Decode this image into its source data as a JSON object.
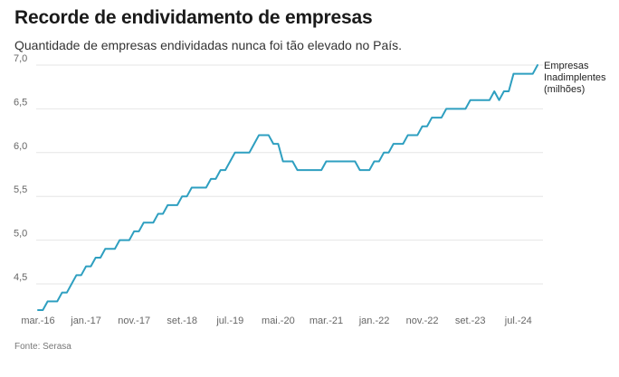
{
  "title": "Recorde de endividamento de empresas",
  "subtitle": "Quantidade de empresas endividadas nunca foi tão elevado no País.",
  "source": "Fonte: Serasa",
  "colors": {
    "line": "#2e9fc0",
    "grid": "#e6e6e6",
    "tick": "#666666"
  },
  "chart_data": {
    "type": "line",
    "ylim": [
      4.2,
      7.0
    ],
    "yticks": [
      "4,5",
      "5,0",
      "5,5",
      "6,0",
      "6,5",
      "7,0"
    ],
    "ytick_values": [
      4.5,
      5.0,
      5.5,
      6.0,
      6.5,
      7.0
    ],
    "xticks": [
      "mar.-16",
      "jan.-17",
      "nov.-17",
      "set.-18",
      "jul.-19",
      "mai.-20",
      "mar.-21",
      "jan.-22",
      "nov.-22",
      "set.-23",
      "jul.-24"
    ],
    "xtick_months": [
      "2016-03",
      "2017-01",
      "2017-11",
      "2018-09",
      "2019-07",
      "2020-05",
      "2021-03",
      "2022-01",
      "2022-11",
      "2023-09",
      "2024-07"
    ],
    "grid": true,
    "legend": "right",
    "series": [
      {
        "name": "Empresas Inadimplentes (milhões)",
        "name_lines": [
          "Empresas",
          "Inadimplentes",
          "(milhões)"
        ],
        "points": [
          [
            "2016-03",
            4.2
          ],
          [
            "2016-04",
            4.2
          ],
          [
            "2016-05",
            4.3
          ],
          [
            "2016-06",
            4.3
          ],
          [
            "2016-07",
            4.3
          ],
          [
            "2016-08",
            4.4
          ],
          [
            "2016-09",
            4.4
          ],
          [
            "2016-10",
            4.5
          ],
          [
            "2016-11",
            4.6
          ],
          [
            "2016-12",
            4.6
          ],
          [
            "2017-01",
            4.7
          ],
          [
            "2017-02",
            4.7
          ],
          [
            "2017-03",
            4.8
          ],
          [
            "2017-04",
            4.8
          ],
          [
            "2017-05",
            4.9
          ],
          [
            "2017-06",
            4.9
          ],
          [
            "2017-07",
            4.9
          ],
          [
            "2017-08",
            5.0
          ],
          [
            "2017-09",
            5.0
          ],
          [
            "2017-10",
            5.0
          ],
          [
            "2017-11",
            5.1
          ],
          [
            "2017-12",
            5.1
          ],
          [
            "2018-01",
            5.2
          ],
          [
            "2018-02",
            5.2
          ],
          [
            "2018-03",
            5.2
          ],
          [
            "2018-04",
            5.3
          ],
          [
            "2018-05",
            5.3
          ],
          [
            "2018-06",
            5.4
          ],
          [
            "2018-07",
            5.4
          ],
          [
            "2018-08",
            5.4
          ],
          [
            "2018-09",
            5.5
          ],
          [
            "2018-10",
            5.5
          ],
          [
            "2018-11",
            5.6
          ],
          [
            "2018-12",
            5.6
          ],
          [
            "2019-01",
            5.6
          ],
          [
            "2019-02",
            5.6
          ],
          [
            "2019-03",
            5.7
          ],
          [
            "2019-04",
            5.7
          ],
          [
            "2019-05",
            5.8
          ],
          [
            "2019-06",
            5.8
          ],
          [
            "2019-07",
            5.9
          ],
          [
            "2019-08",
            6.0
          ],
          [
            "2019-09",
            6.0
          ],
          [
            "2019-10",
            6.0
          ],
          [
            "2019-11",
            6.0
          ],
          [
            "2019-12",
            6.1
          ],
          [
            "2020-01",
            6.2
          ],
          [
            "2020-02",
            6.2
          ],
          [
            "2020-03",
            6.2
          ],
          [
            "2020-04",
            6.1
          ],
          [
            "2020-05",
            6.1
          ],
          [
            "2020-06",
            5.9
          ],
          [
            "2020-07",
            5.9
          ],
          [
            "2020-08",
            5.9
          ],
          [
            "2020-09",
            5.8
          ],
          [
            "2020-10",
            5.8
          ],
          [
            "2020-11",
            5.8
          ],
          [
            "2020-12",
            5.8
          ],
          [
            "2021-01",
            5.8
          ],
          [
            "2021-02",
            5.8
          ],
          [
            "2021-03",
            5.9
          ],
          [
            "2021-04",
            5.9
          ],
          [
            "2021-05",
            5.9
          ],
          [
            "2021-06",
            5.9
          ],
          [
            "2021-07",
            5.9
          ],
          [
            "2021-08",
            5.9
          ],
          [
            "2021-09",
            5.9
          ],
          [
            "2021-10",
            5.8
          ],
          [
            "2021-11",
            5.8
          ],
          [
            "2021-12",
            5.8
          ],
          [
            "2022-01",
            5.9
          ],
          [
            "2022-02",
            5.9
          ],
          [
            "2022-03",
            6.0
          ],
          [
            "2022-04",
            6.0
          ],
          [
            "2022-05",
            6.1
          ],
          [
            "2022-06",
            6.1
          ],
          [
            "2022-07",
            6.1
          ],
          [
            "2022-08",
            6.2
          ],
          [
            "2022-09",
            6.2
          ],
          [
            "2022-10",
            6.2
          ],
          [
            "2022-11",
            6.3
          ],
          [
            "2022-12",
            6.3
          ],
          [
            "2023-01",
            6.4
          ],
          [
            "2023-02",
            6.4
          ],
          [
            "2023-03",
            6.4
          ],
          [
            "2023-04",
            6.5
          ],
          [
            "2023-05",
            6.5
          ],
          [
            "2023-06",
            6.5
          ],
          [
            "2023-07",
            6.5
          ],
          [
            "2023-08",
            6.5
          ],
          [
            "2023-09",
            6.6
          ],
          [
            "2023-10",
            6.6
          ],
          [
            "2023-11",
            6.6
          ],
          [
            "2023-12",
            6.6
          ],
          [
            "2024-01",
            6.6
          ],
          [
            "2024-02",
            6.7
          ],
          [
            "2024-03",
            6.6
          ],
          [
            "2024-04",
            6.7
          ],
          [
            "2024-05",
            6.7
          ],
          [
            "2024-06",
            6.9
          ],
          [
            "2024-07",
            6.9
          ],
          [
            "2024-08",
            6.9
          ],
          [
            "2024-09",
            6.9
          ],
          [
            "2024-10",
            6.9
          ],
          [
            "2024-11",
            7.0
          ]
        ]
      }
    ]
  }
}
